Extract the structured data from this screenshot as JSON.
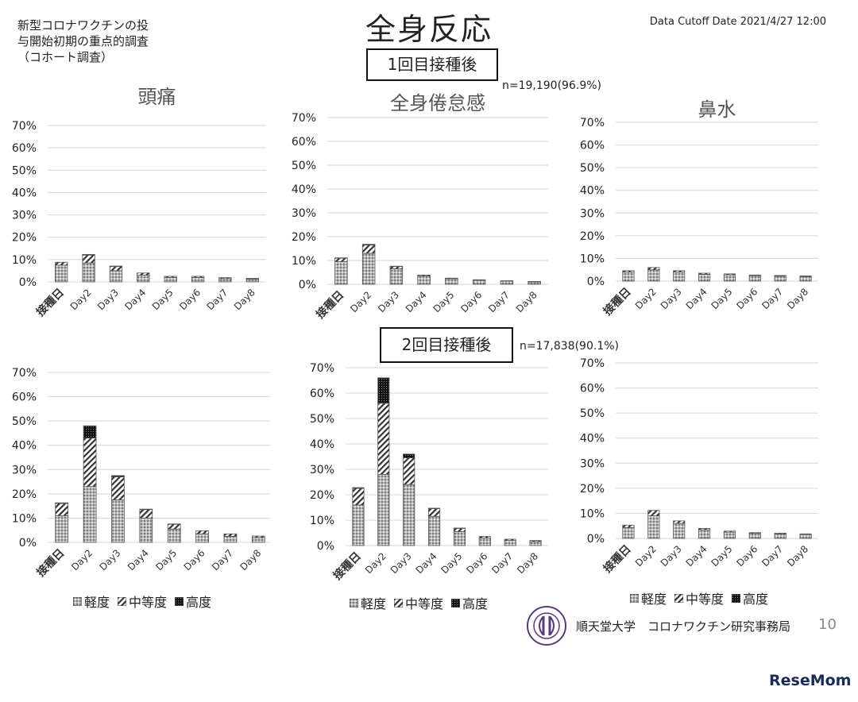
{
  "header": {
    "survey_note": "新型コロナワクチンの投\n与開始初期の重点的調査\n（コホート調査）",
    "title": "全身反応",
    "cutoff": "Data Cutoff Date 2021/4/27 12:00"
  },
  "dose1": {
    "label": "1回目接種後",
    "n": "n=19,190(96.9%)"
  },
  "dose2": {
    "label": "2回目接種後",
    "n": "n=17,838(90.1%)"
  },
  "legend": {
    "mild": "軽度",
    "moderate": "中等度",
    "severe": "高度"
  },
  "footer": {
    "org": "順天堂大学　コロナワクチン研究事務局",
    "page": "10",
    "watermark": "ReseMom"
  },
  "chart_data": [
    {
      "type": "bar",
      "stacked": true,
      "title": "頭痛",
      "dose": "1回目",
      "categories": [
        "接種日",
        "Day2",
        "Day3",
        "Day4",
        "Day5",
        "Day6",
        "Day7",
        "Day8"
      ],
      "series": [
        {
          "name": "軽度",
          "values": [
            7.5,
            8.5,
            5,
            3,
            2,
            2,
            1.5,
            1.3
          ]
        },
        {
          "name": "中等度",
          "values": [
            1.3,
            3.5,
            2,
            1,
            0.5,
            0.5,
            0.4,
            0.3
          ]
        },
        {
          "name": "高度",
          "values": [
            0,
            0.3,
            0.1,
            0,
            0,
            0,
            0,
            0
          ]
        }
      ],
      "yticks": [
        "0%",
        "10%",
        "20%",
        "30%",
        "40%",
        "50%",
        "60%",
        "70%"
      ],
      "ylim": [
        0,
        70
      ]
    },
    {
      "type": "bar",
      "stacked": true,
      "title": "全身倦怠感",
      "dose": "1回目",
      "categories": [
        "接種日",
        "Day2",
        "Day3",
        "Day4",
        "Day5",
        "Day6",
        "Day7",
        "Day8"
      ],
      "series": [
        {
          "name": "軽度",
          "values": [
            9.5,
            13,
            6.5,
            3.5,
            2.3,
            1.7,
            1.3,
            1
          ]
        },
        {
          "name": "中等度",
          "values": [
            1.5,
            3.5,
            1,
            0.4,
            0.3,
            0.2,
            0.2,
            0.2
          ]
        },
        {
          "name": "高度",
          "values": [
            0.1,
            0.3,
            0.1,
            0,
            0,
            0,
            0,
            0
          ]
        }
      ],
      "yticks": [
        "0%",
        "10%",
        "20%",
        "30%",
        "40%",
        "50%",
        "60%",
        "70%"
      ],
      "ylim": [
        0,
        70
      ]
    },
    {
      "type": "bar",
      "stacked": true,
      "title": "鼻水",
      "dose": "1回目",
      "categories": [
        "接種日",
        "Day2",
        "Day3",
        "Day4",
        "Day5",
        "Day6",
        "Day7",
        "Day8"
      ],
      "series": [
        {
          "name": "軽度",
          "values": [
            4,
            5,
            4,
            3,
            2.8,
            2.4,
            2.2,
            2
          ]
        },
        {
          "name": "中等度",
          "values": [
            0.6,
            1,
            0.6,
            0.5,
            0.4,
            0.3,
            0.3,
            0.3
          ]
        },
        {
          "name": "高度",
          "values": [
            0,
            0,
            0,
            0,
            0,
            0,
            0,
            0
          ]
        }
      ],
      "yticks": [
        "0%",
        "10%",
        "20%",
        "30%",
        "40%",
        "50%",
        "60%",
        "70%"
      ],
      "ylim": [
        0,
        70
      ]
    },
    {
      "type": "bar",
      "stacked": true,
      "title": "",
      "dose": "2回目",
      "categories": [
        "接種日",
        "Day2",
        "Day3",
        "Day4",
        "Day5",
        "Day6",
        "Day7",
        "Day8"
      ],
      "series": [
        {
          "name": "軽度",
          "values": [
            11,
            23,
            17.5,
            10,
            5.5,
            3.5,
            2.5,
            2
          ]
        },
        {
          "name": "中等度",
          "values": [
            5,
            20,
            9.5,
            3.5,
            2,
            1.3,
            1,
            0.6
          ]
        },
        {
          "name": "高度",
          "values": [
            0.3,
            5,
            0.5,
            0.2,
            0.1,
            0,
            0,
            0
          ]
        }
      ],
      "yticks": [
        "0%",
        "10%",
        "20%",
        "30%",
        "40%",
        "50%",
        "60%",
        "70%"
      ],
      "ylim": [
        0,
        70
      ]
    },
    {
      "type": "bar",
      "stacked": true,
      "title": "",
      "dose": "2回目",
      "categories": [
        "接種日",
        "Day2",
        "Day3",
        "Day4",
        "Day5",
        "Day6",
        "Day7",
        "Day8"
      ],
      "series": [
        {
          "name": "軽度",
          "values": [
            16,
            28,
            24,
            11.5,
            5.5,
            3,
            2,
            1.6
          ]
        },
        {
          "name": "中等度",
          "values": [
            6.5,
            28,
            10.5,
            3,
            1.3,
            0.6,
            0.5,
            0.4
          ]
        },
        {
          "name": "高度",
          "values": [
            0.3,
            10,
            1.5,
            0.2,
            0.1,
            0,
            0,
            0
          ]
        }
      ],
      "yticks": [
        "0%",
        "10%",
        "20%",
        "30%",
        "40%",
        "50%",
        "60%",
        "70%"
      ],
      "ylim": [
        0,
        70
      ]
    },
    {
      "type": "bar",
      "stacked": true,
      "title": "",
      "dose": "2回目",
      "categories": [
        "接種日",
        "Day2",
        "Day3",
        "Day4",
        "Day5",
        "Day6",
        "Day7",
        "Day8"
      ],
      "series": [
        {
          "name": "軽度",
          "values": [
            4.3,
            9,
            6,
            3.5,
            2.5,
            2,
            1.8,
            1.6
          ]
        },
        {
          "name": "中等度",
          "values": [
            1,
            2.2,
            1,
            0.5,
            0.4,
            0.3,
            0.3,
            0.2
          ]
        },
        {
          "name": "高度",
          "values": [
            0,
            0,
            0,
            0,
            0,
            0,
            0,
            0
          ]
        }
      ],
      "yticks": [
        "0%",
        "10%",
        "20%",
        "30%",
        "40%",
        "50%",
        "60%",
        "70%"
      ],
      "ylim": [
        0,
        70
      ]
    }
  ]
}
